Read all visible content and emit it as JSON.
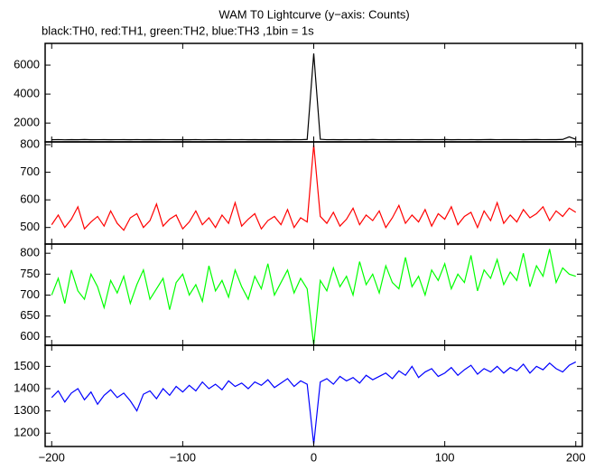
{
  "chart_data": [
    {
      "type": "line",
      "title": "WAM T0 Lightcurve (y−axis: Counts)",
      "subtitle": "black:TH0, red:TH1, green:TH2, blue:TH3 ,1bin = 1s",
      "x": [
        -200,
        -195,
        -190,
        -185,
        -180,
        -175,
        -170,
        -165,
        -160,
        -155,
        -150,
        -145,
        -140,
        -135,
        -130,
        -125,
        -120,
        -115,
        -110,
        -105,
        -100,
        -95,
        -90,
        -85,
        -80,
        -75,
        -70,
        -65,
        -60,
        -55,
        -50,
        -45,
        -40,
        -35,
        -30,
        -25,
        -20,
        -15,
        -10,
        -5,
        0,
        5,
        10,
        15,
        20,
        25,
        30,
        35,
        40,
        45,
        50,
        55,
        60,
        65,
        70,
        75,
        80,
        85,
        90,
        95,
        100,
        105,
        110,
        115,
        120,
        125,
        130,
        135,
        140,
        145,
        150,
        155,
        160,
        165,
        170,
        175,
        180,
        185,
        190,
        195,
        200
      ],
      "series": [
        {
          "name": "TH0",
          "color": "#000000",
          "values": [
            850,
            860,
            845,
            855,
            850,
            862,
            848,
            853,
            858,
            849,
            852,
            856,
            847,
            861,
            850,
            855,
            849,
            858,
            852,
            847,
            856,
            850,
            860,
            845,
            853,
            857,
            848,
            855,
            851,
            859,
            846,
            854,
            850,
            857,
            849,
            853,
            848,
            856,
            852,
            870,
            6800,
            880,
            851,
            855,
            848,
            860,
            853,
            857,
            849,
            862,
            851,
            856,
            850,
            858,
            853,
            861,
            848,
            855,
            859,
            852,
            864,
            850,
            857,
            853,
            860,
            849,
            856,
            862,
            851,
            858,
            854,
            861,
            850,
            857,
            863,
            852,
            859,
            855,
            870,
            1050,
            880
          ]
        }
      ],
      "xlim": [
        -205,
        205
      ],
      "ylim": [
        700,
        7500
      ],
      "yticks": [
        2000,
        4000,
        6000
      ]
    },
    {
      "type": "line",
      "x": [
        -200,
        -195,
        -190,
        -185,
        -180,
        -175,
        -170,
        -165,
        -160,
        -155,
        -150,
        -145,
        -140,
        -135,
        -130,
        -125,
        -120,
        -115,
        -110,
        -105,
        -100,
        -95,
        -90,
        -85,
        -80,
        -75,
        -70,
        -65,
        -60,
        -55,
        -50,
        -45,
        -40,
        -35,
        -30,
        -25,
        -20,
        -15,
        -10,
        -5,
        0,
        5,
        10,
        15,
        20,
        25,
        30,
        35,
        40,
        45,
        50,
        55,
        60,
        65,
        70,
        75,
        80,
        85,
        90,
        95,
        100,
        105,
        110,
        115,
        120,
        125,
        130,
        135,
        140,
        145,
        150,
        155,
        160,
        165,
        170,
        175,
        180,
        185,
        190,
        195,
        200
      ],
      "series": [
        {
          "name": "TH1",
          "color": "#ff0000",
          "values": [
            510,
            545,
            500,
            530,
            575,
            495,
            520,
            540,
            505,
            560,
            515,
            490,
            535,
            550,
            500,
            525,
            585,
            505,
            530,
            545,
            495,
            520,
            560,
            510,
            535,
            500,
            545,
            515,
            590,
            505,
            530,
            550,
            495,
            525,
            540,
            510,
            565,
            500,
            535,
            520,
            800,
            540,
            515,
            555,
            505,
            530,
            570,
            510,
            545,
            525,
            560,
            500,
            535,
            580,
            515,
            545,
            520,
            565,
            505,
            550,
            530,
            575,
            510,
            540,
            555,
            500,
            560,
            525,
            590,
            515,
            545,
            520,
            565,
            535,
            550,
            575,
            525,
            560,
            540,
            570,
            555
          ]
        }
      ],
      "xlim": [
        -205,
        205
      ],
      "ylim": [
        440,
        810
      ],
      "yticks": [
        500,
        600,
        700,
        800
      ]
    },
    {
      "type": "line",
      "x": [
        -200,
        -195,
        -190,
        -185,
        -180,
        -175,
        -170,
        -165,
        -160,
        -155,
        -150,
        -145,
        -140,
        -135,
        -130,
        -125,
        -120,
        -115,
        -110,
        -105,
        -100,
        -95,
        -90,
        -85,
        -80,
        -75,
        -70,
        -65,
        -60,
        -55,
        -50,
        -45,
        -40,
        -35,
        -30,
        -25,
        -20,
        -15,
        -10,
        -5,
        0,
        5,
        10,
        15,
        20,
        25,
        30,
        35,
        40,
        45,
        50,
        55,
        60,
        65,
        70,
        75,
        80,
        85,
        90,
        95,
        100,
        105,
        110,
        115,
        120,
        125,
        130,
        135,
        140,
        145,
        150,
        155,
        160,
        165,
        170,
        175,
        180,
        185,
        190,
        195,
        200
      ],
      "series": [
        {
          "name": "TH2",
          "color": "#00ff00",
          "values": [
            700,
            740,
            680,
            760,
            710,
            690,
            750,
            720,
            670,
            735,
            705,
            745,
            680,
            725,
            760,
            690,
            715,
            740,
            665,
            730,
            750,
            700,
            725,
            685,
            770,
            710,
            735,
            695,
            760,
            720,
            690,
            745,
            715,
            775,
            700,
            730,
            760,
            705,
            740,
            715,
            580,
            735,
            710,
            765,
            720,
            745,
            700,
            780,
            725,
            750,
            705,
            770,
            730,
            715,
            790,
            720,
            745,
            700,
            760,
            735,
            775,
            715,
            750,
            730,
            795,
            710,
            760,
            740,
            785,
            725,
            755,
            735,
            800,
            720,
            770,
            745,
            810,
            730,
            765,
            750,
            745
          ]
        }
      ],
      "xlim": [
        -205,
        205
      ],
      "ylim": [
        580,
        822
      ],
      "yticks": [
        600,
        650,
        700,
        750,
        800
      ]
    },
    {
      "type": "line",
      "x": [
        -200,
        -195,
        -190,
        -185,
        -180,
        -175,
        -170,
        -165,
        -160,
        -155,
        -150,
        -145,
        -140,
        -135,
        -130,
        -125,
        -120,
        -115,
        -110,
        -105,
        -100,
        -95,
        -90,
        -85,
        -80,
        -75,
        -70,
        -65,
        -60,
        -55,
        -50,
        -45,
        -40,
        -35,
        -30,
        -25,
        -20,
        -15,
        -10,
        -5,
        0,
        5,
        10,
        15,
        20,
        25,
        30,
        35,
        40,
        45,
        50,
        55,
        60,
        65,
        70,
        75,
        80,
        85,
        90,
        95,
        100,
        105,
        110,
        115,
        120,
        125,
        130,
        135,
        140,
        145,
        150,
        155,
        160,
        165,
        170,
        175,
        180,
        185,
        190,
        195,
        200
      ],
      "series": [
        {
          "name": "TH3",
          "color": "#0000ff",
          "values": [
            1360,
            1390,
            1340,
            1380,
            1400,
            1350,
            1385,
            1330,
            1370,
            1395,
            1360,
            1380,
            1345,
            1300,
            1375,
            1390,
            1355,
            1400,
            1370,
            1410,
            1385,
            1415,
            1390,
            1430,
            1400,
            1420,
            1395,
            1435,
            1410,
            1425,
            1400,
            1430,
            1415,
            1440,
            1405,
            1425,
            1445,
            1410,
            1435,
            1420,
            1150,
            1430,
            1445,
            1420,
            1455,
            1435,
            1450,
            1425,
            1460,
            1440,
            1455,
            1470,
            1445,
            1480,
            1460,
            1500,
            1450,
            1475,
            1490,
            1455,
            1470,
            1495,
            1460,
            1485,
            1505,
            1465,
            1490,
            1475,
            1500,
            1470,
            1495,
            1480,
            1510,
            1470,
            1500,
            1485,
            1515,
            1490,
            1475,
            1505,
            1520
          ]
        }
      ],
      "xlim": [
        -205,
        205
      ],
      "ylim": [
        1140,
        1595
      ],
      "yticks": [
        1200,
        1300,
        1400,
        1500
      ],
      "xticks": [
        {
          "value": -200,
          "label": "−200"
        },
        {
          "value": -100,
          "label": "−100"
        },
        0,
        100,
        200
      ]
    }
  ]
}
